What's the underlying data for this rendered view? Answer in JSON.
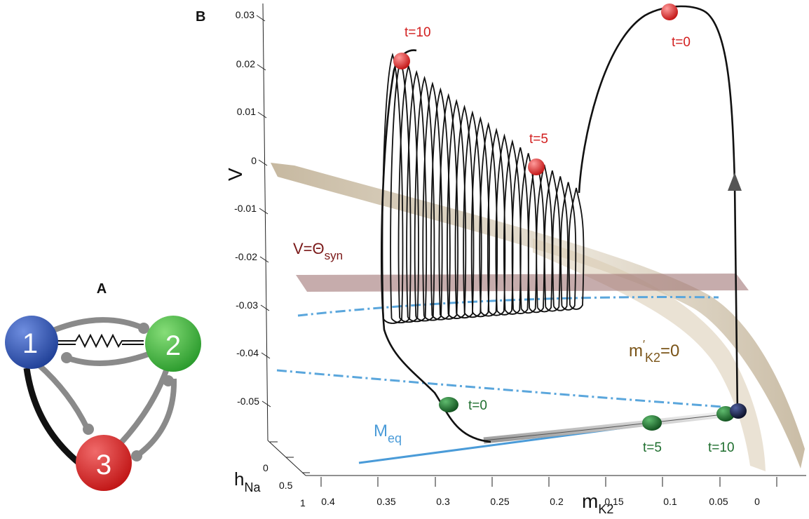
{
  "panel_a": {
    "label": "A",
    "nodes": [
      {
        "label": "1",
        "color": "#2a4fa8"
      },
      {
        "label": "2",
        "color": "#3aa838"
      },
      {
        "label": "3",
        "color": "#d41e1e"
      }
    ]
  },
  "panel_b": {
    "label": "B",
    "axes": {
      "v_label": "V",
      "v_ticks": [
        "0.03",
        "0.02",
        "0.01",
        "0",
        "-0.01",
        "-0.02",
        "-0.03",
        "-0.04",
        "-0.05"
      ],
      "h_label_main": "h",
      "h_label_sub": "Na",
      "h_ticks": [
        "0",
        "0.5",
        "1"
      ],
      "m_label_main": "m",
      "m_label_sub": "K2",
      "m_ticks": [
        "0.4",
        "0.35",
        "0.3",
        "0.25",
        "0.2",
        "0.15",
        "0.1",
        "0.05",
        "0"
      ]
    },
    "annotations": {
      "theta_main": "V=Θ",
      "theta_sub": "syn",
      "mprime_main": "m",
      "mprime_prime": "′",
      "mprime_sub": "K2",
      "mprime_tail": "=0",
      "meq_main": "M",
      "meq_sub": "eq"
    },
    "time_labels_red": [
      "t=10",
      "t=0",
      "t=5"
    ],
    "time_labels_green": [
      "t=0",
      "t=5",
      "t=10"
    ],
    "colors": {
      "red_marker": "#d81818",
      "green_marker": "#1f6e2e",
      "dark_marker": "#121a3a",
      "dashdot": "#5aa6dc",
      "meq_line": "#4a9bd8",
      "surface": "#a6906a",
      "theta_plane": "#a07474",
      "label_red": "#d21e1e",
      "label_green": "#1e6e2e",
      "label_theta": "#7a1818",
      "label_brown": "#7a5418",
      "label_blue": "#4a9bd8"
    }
  }
}
